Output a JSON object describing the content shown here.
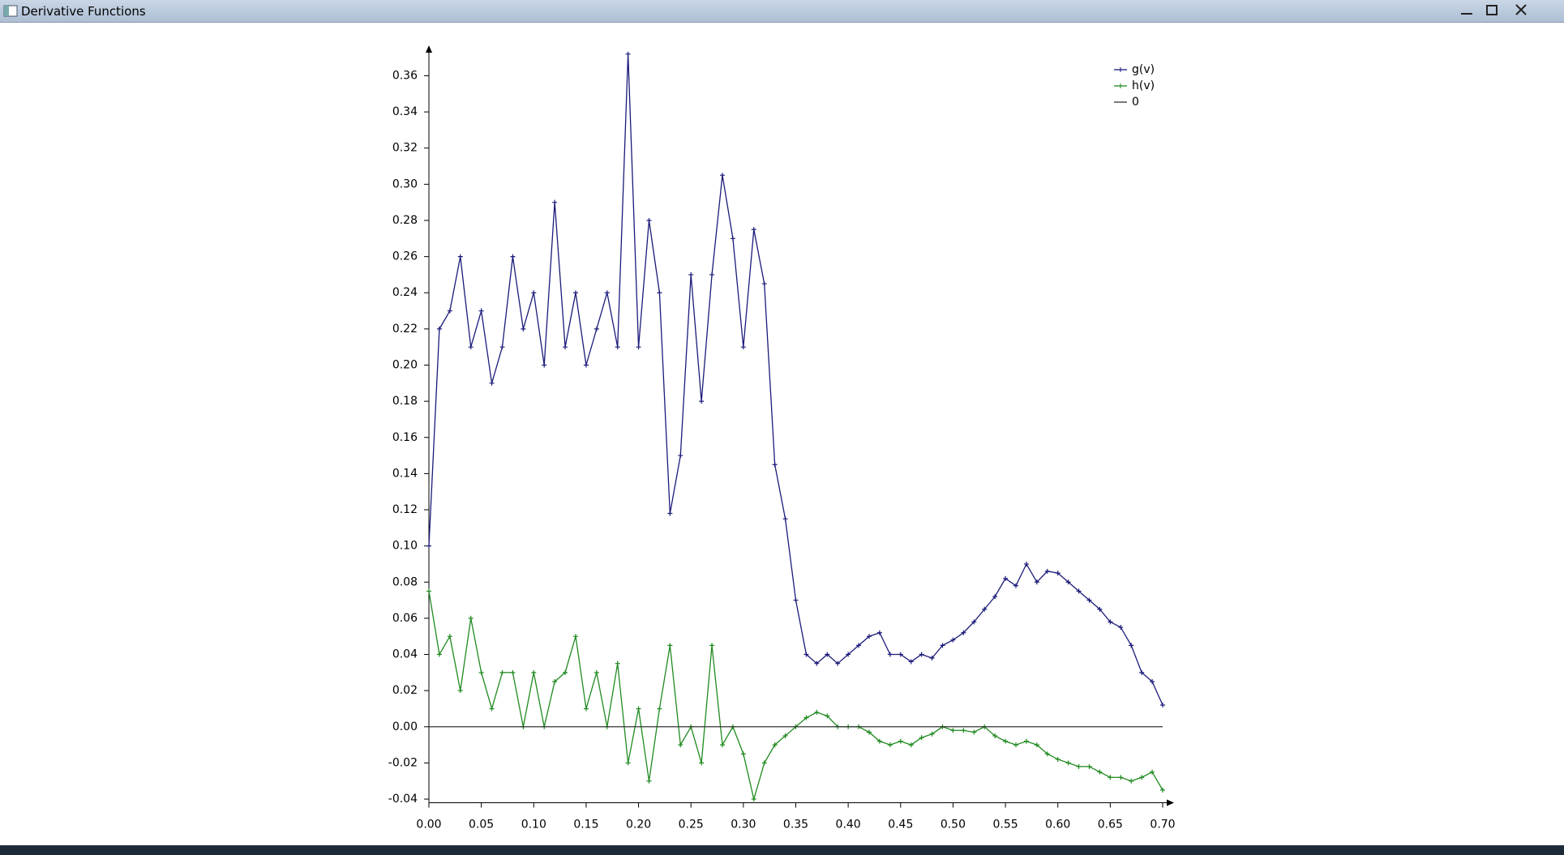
{
  "window": {
    "title": "Derivative Functions"
  },
  "chart_data": {
    "type": "line",
    "x": [
      0.0,
      0.01,
      0.02,
      0.03,
      0.04,
      0.05,
      0.06,
      0.07,
      0.08,
      0.09,
      0.1,
      0.11,
      0.12,
      0.13,
      0.14,
      0.15,
      0.16,
      0.17,
      0.18,
      0.19,
      0.2,
      0.21,
      0.22,
      0.23,
      0.24,
      0.25,
      0.26,
      0.27,
      0.28,
      0.29,
      0.3,
      0.31,
      0.32,
      0.33,
      0.34,
      0.35,
      0.36,
      0.37,
      0.38,
      0.39,
      0.4,
      0.41,
      0.42,
      0.43,
      0.44,
      0.45,
      0.46,
      0.47,
      0.48,
      0.49,
      0.5,
      0.51,
      0.52,
      0.53,
      0.54,
      0.55,
      0.56,
      0.57,
      0.58,
      0.59,
      0.6,
      0.61,
      0.62,
      0.63,
      0.64,
      0.65,
      0.66,
      0.67,
      0.68,
      0.69,
      0.7
    ],
    "series": [
      {
        "name": "g(v)",
        "color": "#1a1a7a",
        "values": [
          0.1,
          0.22,
          0.23,
          0.26,
          0.21,
          0.23,
          0.19,
          0.21,
          0.26,
          0.22,
          0.24,
          0.2,
          0.29,
          0.21,
          0.24,
          0.2,
          0.22,
          0.24,
          0.21,
          0.372,
          0.21,
          0.28,
          0.24,
          0.118,
          0.15,
          0.25,
          0.18,
          0.25,
          0.305,
          0.27,
          0.21,
          0.275,
          0.245,
          0.145,
          0.115,
          0.07,
          0.04,
          0.035,
          0.04,
          0.035,
          0.04,
          0.045,
          0.05,
          0.052,
          0.04,
          0.04,
          0.036,
          0.04,
          0.038,
          0.045,
          0.048,
          0.052,
          0.058,
          0.065,
          0.072,
          0.082,
          0.078,
          0.09,
          0.08,
          0.086,
          0.085,
          0.08,
          0.075,
          0.07,
          0.065,
          0.058,
          0.055,
          0.045,
          0.03,
          0.025,
          0.012
        ]
      },
      {
        "name": "h(v)",
        "color": "#1f8a1f",
        "values": [
          0.075,
          0.04,
          0.05,
          0.02,
          0.06,
          0.03,
          0.01,
          0.03,
          0.03,
          0.0,
          0.03,
          0.0,
          0.025,
          0.03,
          0.05,
          0.01,
          0.03,
          0.0,
          0.035,
          -0.02,
          0.01,
          -0.03,
          0.01,
          0.045,
          -0.01,
          0.0,
          -0.02,
          0.045,
          -0.01,
          0.0,
          -0.015,
          -0.04,
          -0.02,
          -0.01,
          -0.005,
          0.0,
          0.005,
          0.008,
          0.006,
          0.0,
          0.0,
          0.0,
          -0.003,
          -0.008,
          -0.01,
          -0.008,
          -0.01,
          -0.006,
          -0.004,
          0.0,
          -0.002,
          -0.002,
          -0.003,
          0.0,
          -0.005,
          -0.008,
          -0.01,
          -0.008,
          -0.01,
          -0.015,
          -0.018,
          -0.02,
          -0.022,
          -0.022,
          -0.025,
          -0.028,
          -0.028,
          -0.03,
          -0.028,
          -0.025,
          -0.035
        ]
      },
      {
        "name": "0",
        "color": "#333333",
        "x": [
          0,
          0.7
        ],
        "values": [
          0,
          0
        ],
        "markers": false
      }
    ],
    "xlim": [
      0,
      0.7
    ],
    "ylim": [
      -0.042,
      0.375
    ],
    "xticks": [
      {
        "value": 0,
        "label": "0.00"
      },
      0.05,
      {
        "value": 0.1,
        "label": "0.10"
      },
      0.15,
      {
        "value": 0.2,
        "label": "0.20"
      },
      0.25,
      {
        "value": 0.3,
        "label": "0.30"
      },
      0.35,
      {
        "value": 0.4,
        "label": "0.40"
      },
      0.45,
      {
        "value": 0.5,
        "label": "0.50"
      },
      0.55,
      {
        "value": 0.6,
        "label": "0.60"
      },
      0.65,
      {
        "value": 0.7,
        "label": "0.70"
      }
    ],
    "yticks": [
      -0.04,
      -0.02,
      {
        "value": 0,
        "label": "0.00"
      },
      0.02,
      0.04,
      0.06,
      0.08,
      {
        "value": 0.1,
        "label": "0.10"
      },
      0.12,
      0.14,
      0.16,
      0.18,
      {
        "value": 0.2,
        "label": "0.20"
      },
      0.22,
      0.24,
      0.26,
      0.28,
      {
        "value": 0.3,
        "label": "0.30"
      },
      0.32,
      0.34,
      0.36
    ],
    "legend": "upper right"
  }
}
